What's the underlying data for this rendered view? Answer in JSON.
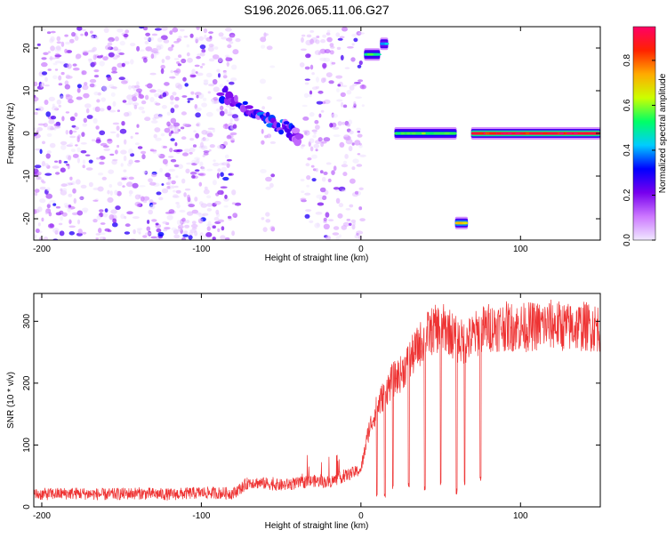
{
  "title": "S196.2026.065.11.06.G27",
  "chart_data": [
    {
      "type": "heatmap",
      "name": "spectrogram",
      "xlabel": "Height of straight line (km)",
      "ylabel": "Frequency (Hz)",
      "xlim": [
        -205,
        150
      ],
      "ylim": [
        -25,
        25
      ],
      "xticks": [
        -200,
        -100,
        0,
        100
      ],
      "xtick_labels": [
        "-200",
        "-100",
        "0",
        "100"
      ],
      "yticks": [
        20,
        10,
        0,
        -10,
        -20
      ],
      "ytick_labels": [
        "20",
        "10",
        "0",
        "-10",
        "-20"
      ],
      "colorbar": {
        "label": "Normalized spectral amplitude",
        "range": [
          0.0,
          0.95
        ],
        "ticks": [
          0.0,
          0.2,
          0.4,
          0.6,
          0.8
        ],
        "tick_labels": [
          "0.0",
          "0.2",
          "0.4",
          "0.6",
          "0.8"
        ],
        "colors": [
          "#f0e8ff",
          "#cc77ff",
          "#7700ee",
          "#0000ff",
          "#00ccff",
          "#00ff66",
          "#ccff00",
          "#ffaa00",
          "#ff2200",
          "#ff0066"
        ]
      },
      "features": [
        {
          "label": "noise region",
          "x_range": [
            -205,
            -77
          ],
          "f_range": [
            -25,
            25
          ],
          "amplitude": 0.1
        },
        {
          "label": "noise region",
          "x_range": [
            -62,
            -55
          ],
          "f_range": [
            -25,
            25
          ],
          "amplitude": 0.05
        },
        {
          "label": "noise region",
          "x_range": [
            -37,
            2
          ],
          "f_range": [
            -25,
            25
          ],
          "amplitude": 0.08
        },
        {
          "label": "descending track",
          "points": [
            [
              -88,
              9.5
            ],
            [
              -75,
              7
            ],
            [
              -65,
              4
            ],
            [
              -55,
              2.5
            ],
            [
              -45,
              1
            ],
            [
              -38,
              -2
            ]
          ],
          "amplitude": 0.3
        },
        {
          "label": "tone",
          "x_range": [
            2,
            12
          ],
          "f": 18.5,
          "amplitude": 0.5
        },
        {
          "label": "tone",
          "x_range": [
            12,
            17
          ],
          "f": 21,
          "amplitude": 0.4
        },
        {
          "label": "carrier",
          "x_range": [
            21,
            60
          ],
          "f": 0,
          "amplitude": 0.55
        },
        {
          "label": "tone",
          "x_range": [
            59,
            67
          ],
          "f": -21,
          "amplitude": 0.7
        },
        {
          "label": "carrier",
          "x_range": [
            69,
            150
          ],
          "f": 0,
          "amplitude": 0.9
        }
      ]
    },
    {
      "type": "line",
      "name": "snr",
      "xlabel": "Height of straight line (km)",
      "ylabel": "SNR (10 * v/v)",
      "xlim": [
        -205,
        150
      ],
      "ylim": [
        0,
        345
      ],
      "xticks": [
        -200,
        -100,
        0,
        100
      ],
      "xtick_labels": [
        "-200",
        "-100",
        "0",
        "100"
      ],
      "yticks": [
        0,
        100,
        200,
        300
      ],
      "ytick_labels": [
        "0",
        "100",
        "200",
        "300"
      ],
      "color": "#ee3333",
      "series": [
        {
          "name": "SNR",
          "x": [
            -205,
            -180,
            -160,
            -140,
            -120,
            -100,
            -80,
            -70,
            -60,
            -50,
            -40,
            -30,
            -20,
            -10,
            0,
            5,
            10,
            15,
            20,
            25,
            30,
            35,
            40,
            45,
            50,
            55,
            60,
            65,
            70,
            75,
            80,
            90,
            100,
            110,
            120,
            130,
            140,
            150
          ],
          "y": [
            20,
            22,
            20,
            22,
            20,
            23,
            22,
            40,
            38,
            35,
            38,
            42,
            40,
            50,
            60,
            125,
            160,
            185,
            205,
            215,
            235,
            255,
            275,
            285,
            290,
            285,
            270,
            265,
            275,
            285,
            290,
            292,
            290,
            292,
            295,
            290,
            292,
            290
          ]
        },
        {
          "name": "dropouts",
          "x": [
            10,
            15,
            20,
            30,
            40,
            50,
            60,
            65,
            75
          ],
          "y": [
            15,
            15,
            25,
            30,
            25,
            30,
            20,
            35,
            40
          ]
        }
      ]
    }
  ]
}
